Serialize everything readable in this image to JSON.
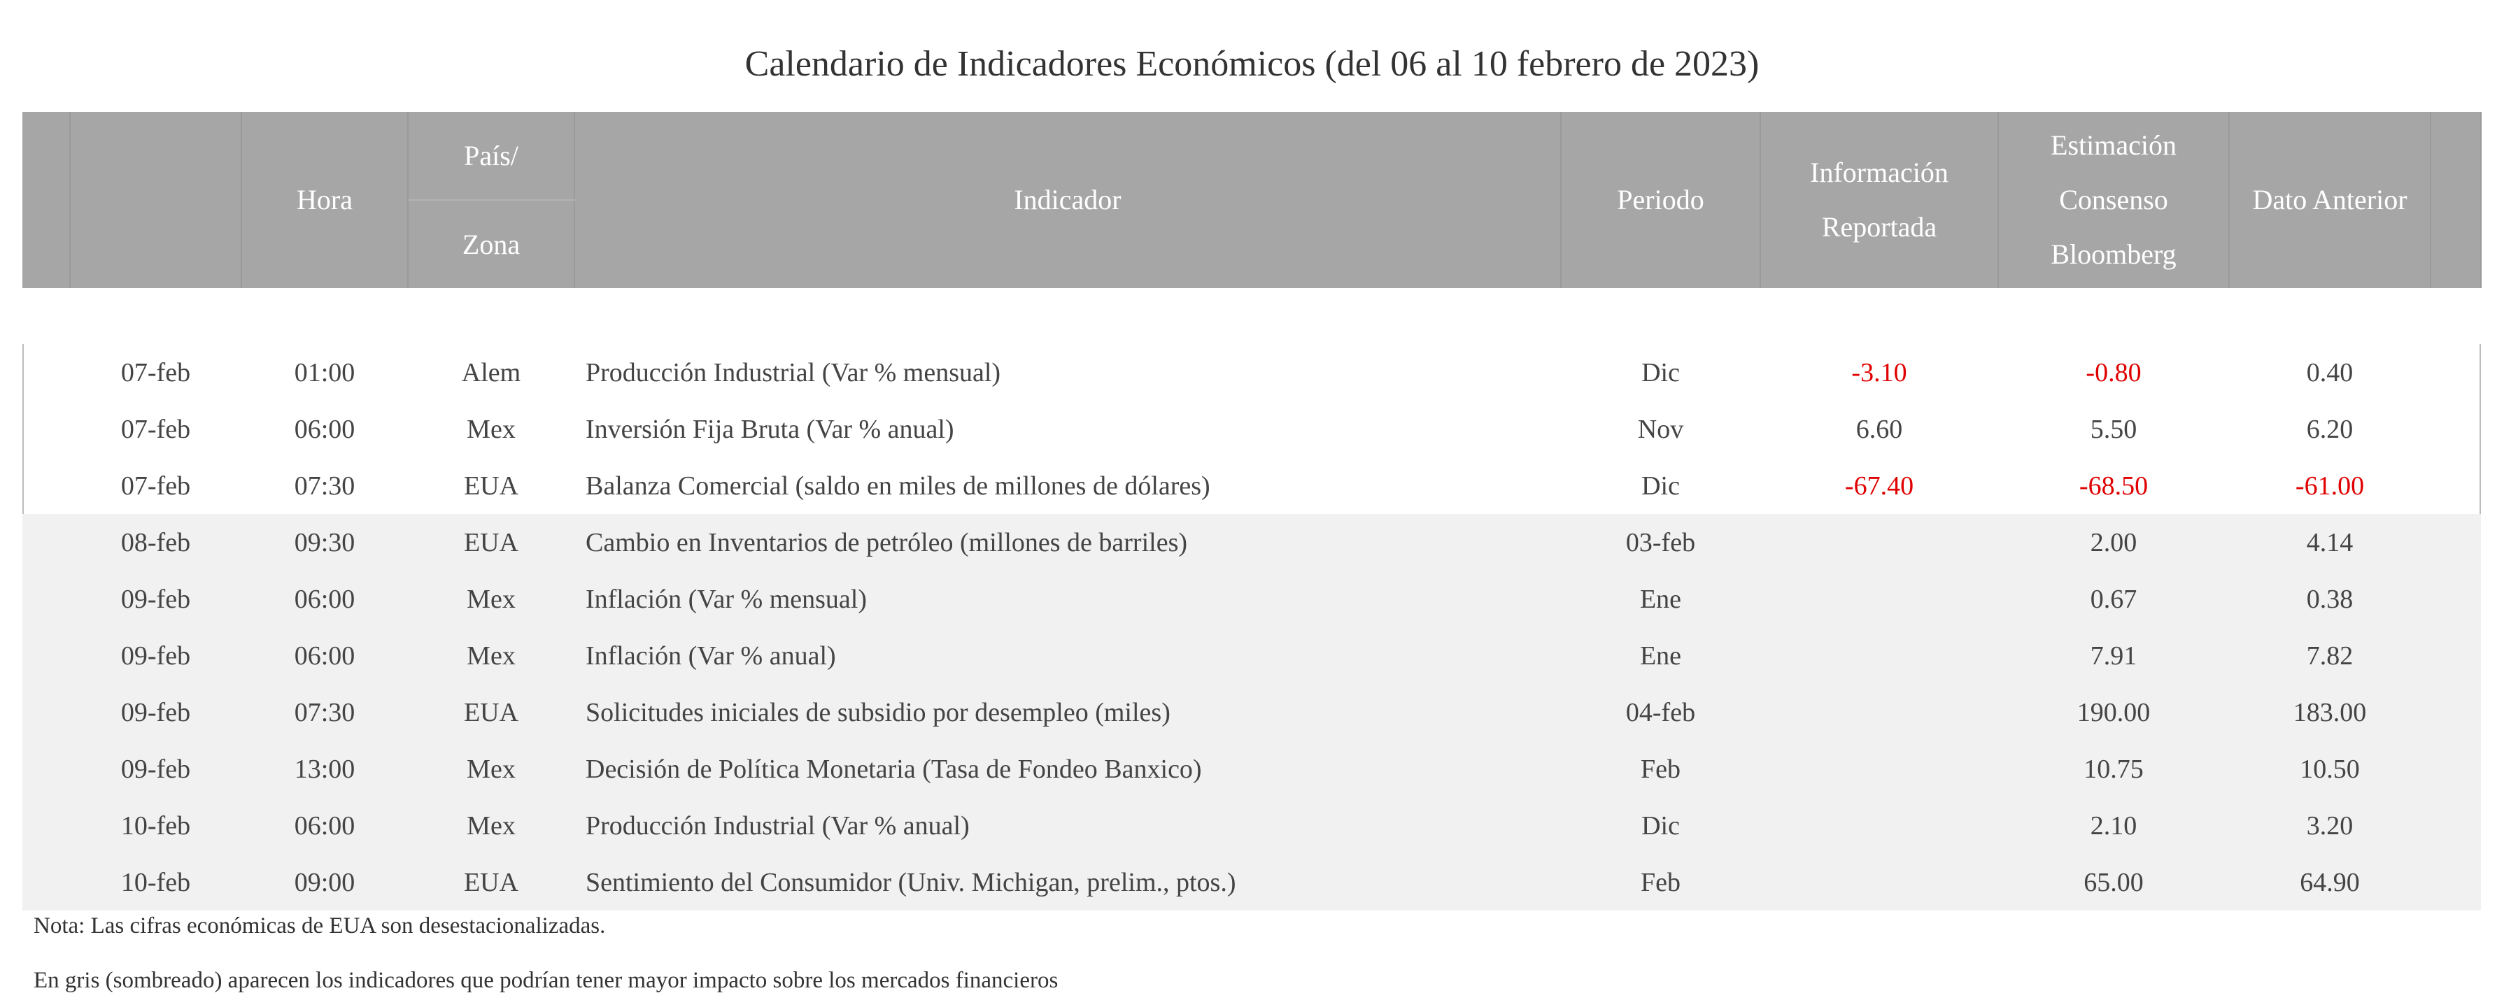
{
  "title": "Calendario de Indicadores Económicos (del 06 al 10 febrero de 2023)",
  "headers": {
    "hora": "Hora",
    "pais_line1": "País/",
    "pais_line2": "Zona",
    "indicador": "Indicador",
    "periodo": "Periodo",
    "info_line1": "Información",
    "info_line2": "Reportada",
    "est_line1": "Estimación",
    "est_line2": "Consenso",
    "est_line3": "Bloomberg",
    "anterior": "Dato Anterior"
  },
  "rows": [
    {
      "fecha": "07-feb",
      "hora": "01:00",
      "pais": "Alem",
      "indicador": "Producción Industrial (Var % mensual)",
      "periodo": "Dic",
      "reportada": "-3.10",
      "consenso": "-0.80",
      "anterior": "0.40",
      "shaded": false
    },
    {
      "fecha": "07-feb",
      "hora": "06:00",
      "pais": "Mex",
      "indicador": "Inversión Fija Bruta (Var % anual)",
      "periodo": "Nov",
      "reportada": "6.60",
      "consenso": "5.50",
      "anterior": "6.20",
      "shaded": false
    },
    {
      "fecha": "07-feb",
      "hora": "07:30",
      "pais": "EUA",
      "indicador": "Balanza Comercial (saldo en miles de millones de dólares)",
      "periodo": "Dic",
      "reportada": "-67.40",
      "consenso": "-68.50",
      "anterior": "-61.00",
      "shaded": false
    },
    {
      "fecha": "08-feb",
      "hora": "09:30",
      "pais": "EUA",
      "indicador": "Cambio en Inventarios de petróleo (millones de barriles)",
      "periodo": "03-feb",
      "reportada": "",
      "consenso": "2.00",
      "anterior": "4.14",
      "shaded": true
    },
    {
      "fecha": "09-feb",
      "hora": "06:00",
      "pais": "Mex",
      "indicador": "Inflación (Var % mensual)",
      "periodo": "Ene",
      "reportada": "",
      "consenso": "0.67",
      "anterior": "0.38",
      "shaded": true
    },
    {
      "fecha": "09-feb",
      "hora": "06:00",
      "pais": "Mex",
      "indicador": "Inflación (Var % anual)",
      "periodo": "Ene",
      "reportada": "",
      "consenso": "7.91",
      "anterior": "7.82",
      "shaded": true
    },
    {
      "fecha": "09-feb",
      "hora": "07:30",
      "pais": "EUA",
      "indicador": "Solicitudes iniciales de subsidio por desempleo (miles)",
      "periodo": "04-feb",
      "reportada": "",
      "consenso": "190.00",
      "anterior": "183.00",
      "shaded": true
    },
    {
      "fecha": "09-feb",
      "hora": "13:00",
      "pais": "Mex",
      "indicador": "Decisión de Política Monetaria (Tasa de Fondeo Banxico)",
      "periodo": "Feb",
      "reportada": "",
      "consenso": "10.75",
      "anterior": "10.50",
      "shaded": true
    },
    {
      "fecha": "10-feb",
      "hora": "06:00",
      "pais": "Mex",
      "indicador": "Producción Industrial (Var % anual)",
      "periodo": "Dic",
      "reportada": "",
      "consenso": "2.10",
      "anterior": "3.20",
      "shaded": true
    },
    {
      "fecha": "10-feb",
      "hora": "09:00",
      "pais": "EUA",
      "indicador": "Sentimiento del Consumidor (Univ. Michigan, prelim., ptos.)",
      "periodo": "Feb",
      "reportada": "",
      "consenso": "65.00",
      "anterior": "64.90",
      "shaded": true
    }
  ],
  "notes": {
    "note1": "Nota: Las cifras económicas de EUA son desestacionalizadas.",
    "note2": "En gris (sombreado) aparecen los indicadores que podrían tener mayor impacto sobre los mercados financieros"
  },
  "colors": {
    "header_bg": "#a6a6a6",
    "shaded_row": "#f1f1f1",
    "negative": "#e00000"
  }
}
